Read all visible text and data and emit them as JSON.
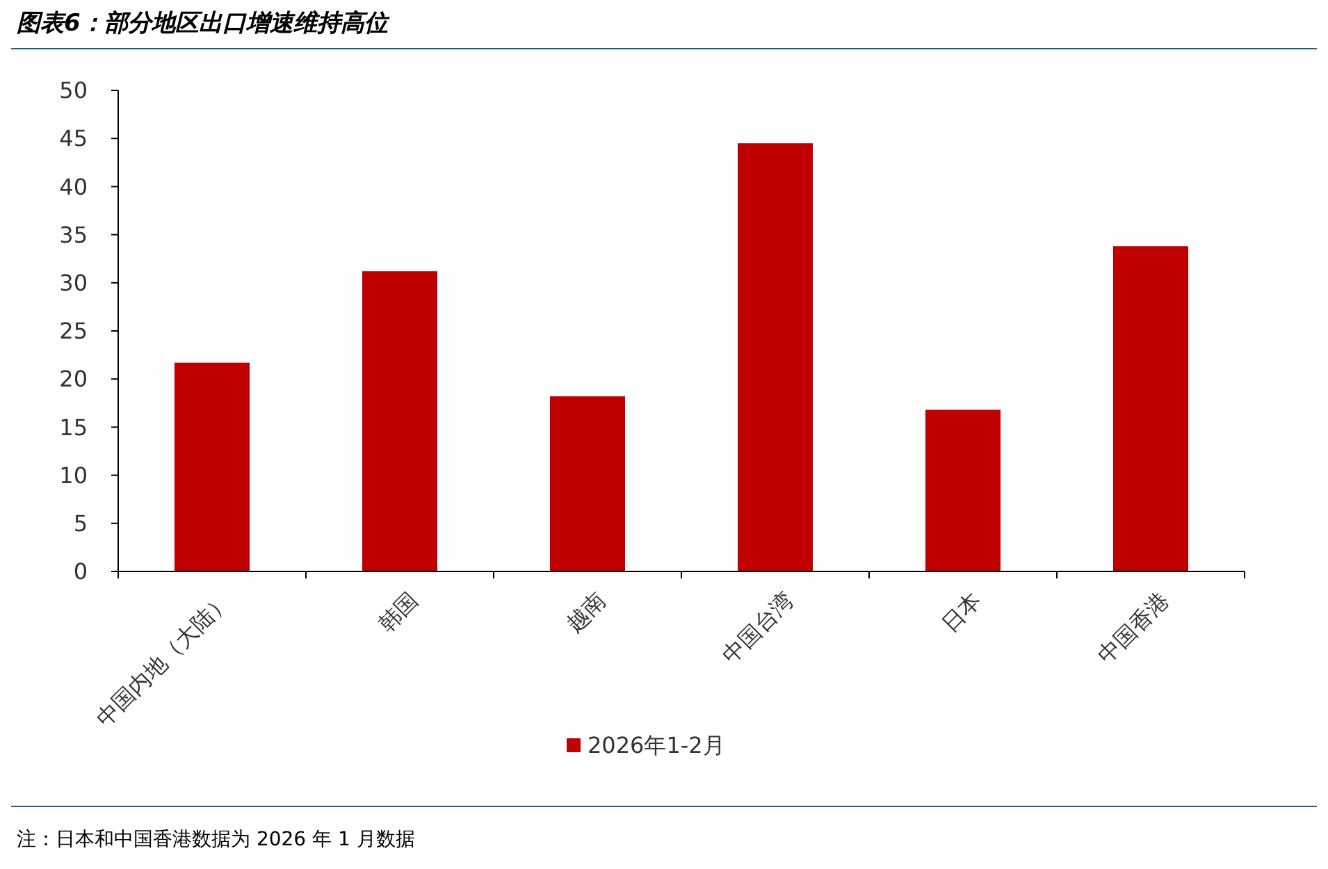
{
  "chart_data": {
    "type": "bar",
    "title": "图表6：部分地区出口增速维持高位",
    "categories": [
      "中国内地（大陆）",
      "韩国",
      "越南",
      "中国台湾",
      "日本",
      "中国香港"
    ],
    "series": [
      {
        "name": "2026年1-2月",
        "color": "#c00000",
        "values": [
          21.7,
          31.2,
          18.2,
          44.5,
          16.8,
          33.8
        ]
      }
    ],
    "ylim": [
      0,
      50
    ],
    "yticks": [
      0,
      5,
      10,
      15,
      20,
      25,
      30,
      35,
      40,
      45,
      50
    ],
    "grid": false,
    "legend": "bottom",
    "annotations": [
      "注：日本和中国香港数据为 2026 年 1 月数据"
    ]
  }
}
